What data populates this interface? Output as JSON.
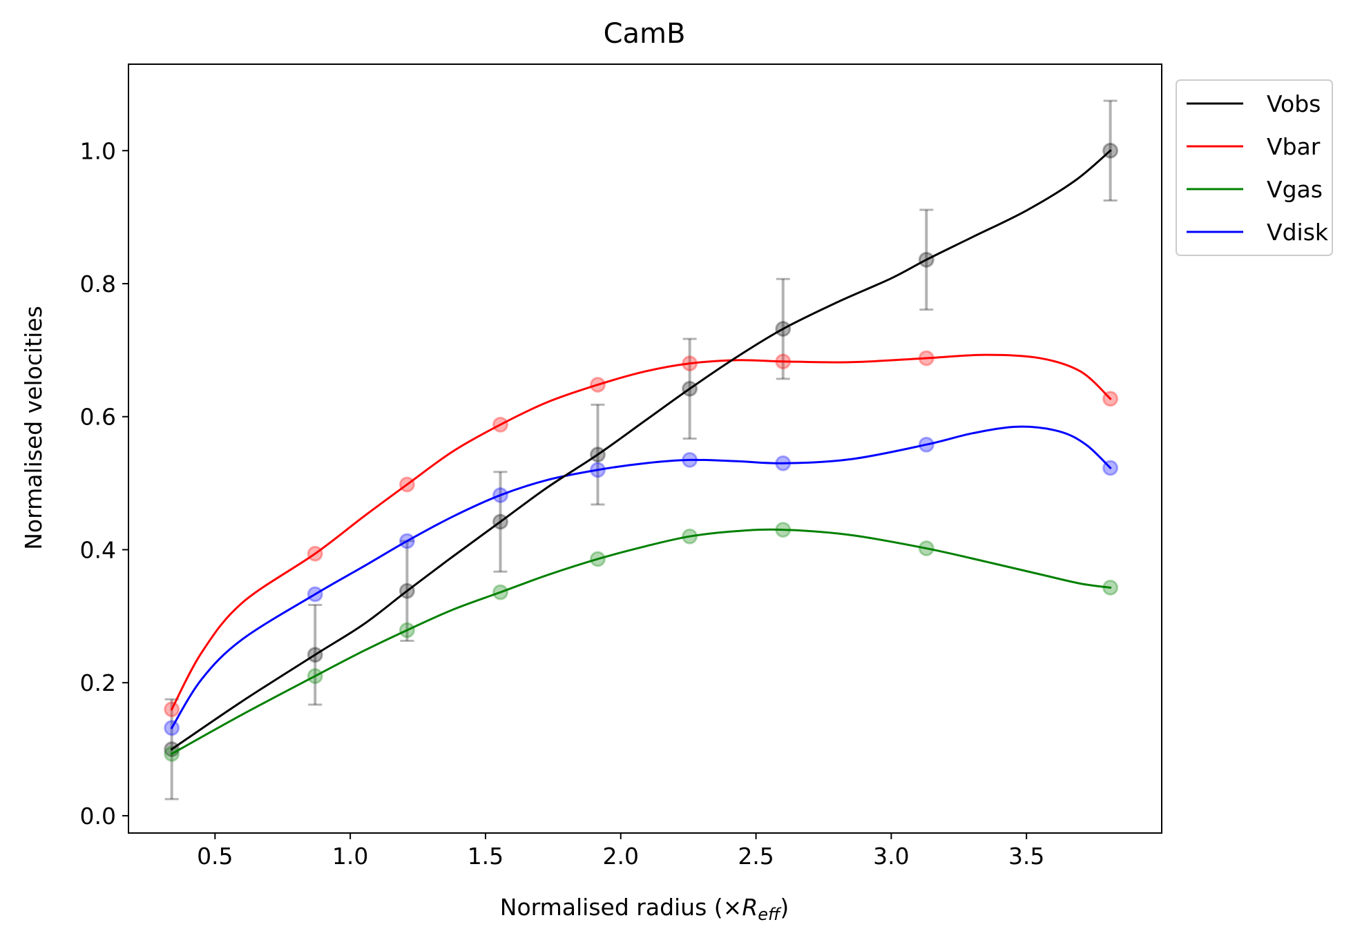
{
  "chart_data": {
    "type": "line",
    "title": "CamB",
    "xlabel": {
      "main": "Normalised radius (×",
      "var": "R",
      "sub": "eff",
      "close": ")"
    },
    "ylabel": "Normalised velocities",
    "xlim": [
      0.18,
      4.0
    ],
    "ylim": [
      -0.026,
      1.13
    ],
    "xticks": [
      0.5,
      1.0,
      1.5,
      2.0,
      2.5,
      3.0,
      3.5
    ],
    "xtick_labels": [
      "0.5",
      "1.0",
      "1.5",
      "2.0",
      "2.5",
      "3.0",
      "3.5"
    ],
    "yticks": [
      0.0,
      0.2,
      0.4,
      0.6,
      0.8,
      1.0
    ],
    "ytick_labels": [
      "0.0",
      "0.2",
      "0.4",
      "0.6",
      "0.8",
      "1.0"
    ],
    "legend_position": "outside-top-right",
    "x": [
      0.34,
      0.87,
      1.21,
      1.555,
      1.915,
      2.255,
      2.6,
      3.13,
      3.81
    ],
    "series": [
      {
        "name": "Vobs",
        "color": "#000000",
        "values": [
          0.1,
          0.242,
          0.338,
          0.442,
          0.543,
          0.642,
          0.732,
          0.836,
          1.0
        ],
        "error": [
          0.075,
          0.075,
          0.075,
          0.075,
          0.075,
          0.075,
          0.075,
          0.075,
          0.075
        ],
        "curve": [
          [
            0.34,
            0.1
          ],
          [
            0.6,
            0.172
          ],
          [
            0.87,
            0.242
          ],
          [
            1.05,
            0.288
          ],
          [
            1.21,
            0.338
          ],
          [
            1.38,
            0.39
          ],
          [
            1.555,
            0.442
          ],
          [
            1.73,
            0.494
          ],
          [
            1.915,
            0.543
          ],
          [
            2.09,
            0.594
          ],
          [
            2.255,
            0.642
          ],
          [
            2.43,
            0.69
          ],
          [
            2.6,
            0.732
          ],
          [
            2.8,
            0.772
          ],
          [
            3.0,
            0.808
          ],
          [
            3.13,
            0.836
          ],
          [
            3.3,
            0.87
          ],
          [
            3.5,
            0.91
          ],
          [
            3.68,
            0.955
          ],
          [
            3.81,
            1.0
          ]
        ]
      },
      {
        "name": "Vbar",
        "color": "#ff0000",
        "values": [
          0.16,
          0.394,
          0.498,
          0.588,
          0.648,
          0.68,
          0.683,
          0.688,
          0.627
        ],
        "curve": [
          [
            0.34,
            0.16
          ],
          [
            0.45,
            0.245
          ],
          [
            0.6,
            0.32
          ],
          [
            0.87,
            0.394
          ],
          [
            1.05,
            0.45
          ],
          [
            1.21,
            0.498
          ],
          [
            1.38,
            0.548
          ],
          [
            1.555,
            0.588
          ],
          [
            1.73,
            0.622
          ],
          [
            1.915,
            0.648
          ],
          [
            2.09,
            0.668
          ],
          [
            2.255,
            0.68
          ],
          [
            2.43,
            0.685
          ],
          [
            2.6,
            0.683
          ],
          [
            2.85,
            0.682
          ],
          [
            3.13,
            0.688
          ],
          [
            3.35,
            0.693
          ],
          [
            3.55,
            0.688
          ],
          [
            3.7,
            0.668
          ],
          [
            3.81,
            0.627
          ]
        ]
      },
      {
        "name": "Vgas",
        "color": "#008000",
        "values": [
          0.093,
          0.21,
          0.279,
          0.336,
          0.386,
          0.42,
          0.43,
          0.402,
          0.343
        ],
        "curve": [
          [
            0.34,
            0.093
          ],
          [
            0.6,
            0.152
          ],
          [
            0.87,
            0.21
          ],
          [
            1.05,
            0.248
          ],
          [
            1.21,
            0.279
          ],
          [
            1.38,
            0.31
          ],
          [
            1.555,
            0.336
          ],
          [
            1.73,
            0.362
          ],
          [
            1.915,
            0.386
          ],
          [
            2.09,
            0.405
          ],
          [
            2.255,
            0.42
          ],
          [
            2.43,
            0.428
          ],
          [
            2.6,
            0.43
          ],
          [
            2.85,
            0.422
          ],
          [
            3.13,
            0.402
          ],
          [
            3.35,
            0.382
          ],
          [
            3.55,
            0.363
          ],
          [
            3.7,
            0.349
          ],
          [
            3.81,
            0.343
          ]
        ]
      },
      {
        "name": "Vdisk",
        "color": "#0000ff",
        "values": [
          0.132,
          0.333,
          0.413,
          0.482,
          0.52,
          0.535,
          0.53,
          0.558,
          0.523
        ],
        "curve": [
          [
            0.34,
            0.132
          ],
          [
            0.45,
            0.205
          ],
          [
            0.6,
            0.265
          ],
          [
            0.87,
            0.333
          ],
          [
            1.05,
            0.375
          ],
          [
            1.21,
            0.413
          ],
          [
            1.38,
            0.45
          ],
          [
            1.555,
            0.482
          ],
          [
            1.73,
            0.505
          ],
          [
            1.915,
            0.52
          ],
          [
            2.09,
            0.53
          ],
          [
            2.255,
            0.535
          ],
          [
            2.43,
            0.533
          ],
          [
            2.6,
            0.53
          ],
          [
            2.85,
            0.536
          ],
          [
            3.13,
            0.558
          ],
          [
            3.3,
            0.575
          ],
          [
            3.47,
            0.585
          ],
          [
            3.62,
            0.578
          ],
          [
            3.72,
            0.558
          ],
          [
            3.81,
            0.523
          ]
        ]
      }
    ]
  }
}
